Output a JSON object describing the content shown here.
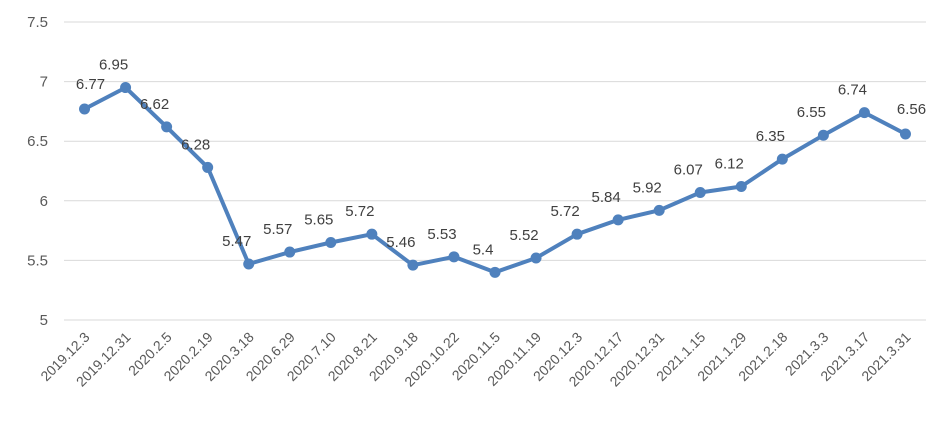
{
  "chart_data": {
    "type": "line",
    "title": "",
    "xlabel": "",
    "ylabel": "",
    "categories": [
      "2019.12.3",
      "2019.12.31",
      "2020.2.5",
      "2020.2.19",
      "2020.3.18",
      "2020.6.29",
      "2020.7.10",
      "2020.8.21",
      "2020.9.18",
      "2020.10.22",
      "2020.11.5",
      "2020.11.19",
      "2020.12.3",
      "2020.12.17",
      "2020.12.31",
      "2021.1.15",
      "2021.1.29",
      "2021.2.18",
      "2021.3.3",
      "2021.3.17",
      "2021.3.31"
    ],
    "series": [
      {
        "name": "",
        "values": [
          6.77,
          6.95,
          6.62,
          6.28,
          5.47,
          5.57,
          5.65,
          5.72,
          5.46,
          5.53,
          5.4,
          5.52,
          5.72,
          5.84,
          5.92,
          6.07,
          6.12,
          6.35,
          6.55,
          6.74,
          6.56
        ],
        "labels": [
          "6.77",
          "6.95",
          "6.62",
          "6.28",
          "5.47",
          "5.57",
          "5.65",
          "5.72",
          "5.46",
          "5.53",
          "5.4",
          "5.52",
          "5.72",
          "5.84",
          "5.92",
          "6.07",
          "6.12",
          "6.35",
          "6.55",
          "6.74",
          "6.56"
        ]
      }
    ],
    "ylim": [
      5,
      7.5
    ],
    "yticks": [
      "5",
      "5.5",
      "6",
      "6.5",
      "7",
      "7.5"
    ],
    "grid": true,
    "legend": "none",
    "colors": {
      "line": "#4f81bd",
      "grid": "#d9d9d9",
      "axis_text": "#595959",
      "label_text": "#404040"
    }
  }
}
